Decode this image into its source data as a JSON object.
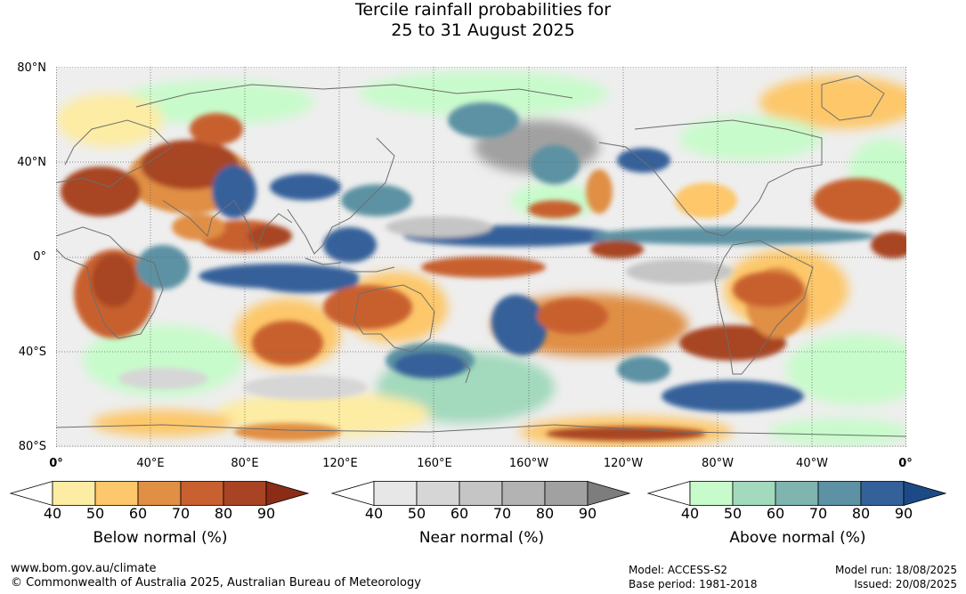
{
  "title": {
    "line1": "Tercile rainfall probabilities for",
    "line2": "25 to 31 August 2025"
  },
  "axes": {
    "lat_labels": [
      "80°N",
      "40°N",
      "0°",
      "40°S",
      "80°S"
    ],
    "lon_labels": [
      "0°",
      "40°E",
      "80°E",
      "120°E",
      "160°E",
      "160°W",
      "120°W",
      "80°W",
      "40°W",
      "0°"
    ]
  },
  "legends": [
    {
      "title": "Below normal (%)",
      "ticks": [
        "40",
        "50",
        "60",
        "70",
        "80",
        "90"
      ],
      "colors": [
        "#ffffff",
        "#fdeca3",
        "#fdc76b",
        "#e08f45",
        "#c8602f",
        "#a84424",
        "#8a2c16"
      ]
    },
    {
      "title": "Near normal (%)",
      "ticks": [
        "40",
        "50",
        "60",
        "70",
        "80",
        "90"
      ],
      "colors": [
        "#ffffff",
        "#e7e7e7",
        "#d6d6d6",
        "#c5c5c5",
        "#b3b3b3",
        "#a1a1a1",
        "#7d7d7d"
      ]
    },
    {
      "title": "Above normal (%)",
      "ticks": [
        "40",
        "50",
        "60",
        "70",
        "80",
        "90"
      ],
      "colors": [
        "#ffffff",
        "#c8fbcb",
        "#a3d9bd",
        "#7fb4af",
        "#5c92a3",
        "#34619a",
        "#1c4a86"
      ]
    }
  ],
  "footer": {
    "url": "www.bom.gov.au/climate",
    "copyright": "© Commonwealth of Australia 2025, Australian Bureau of Meteorology",
    "model": "Model: ACCESS-S2",
    "base_period": "Base period: 1981-2018",
    "model_run": "Model run: 18/08/2025",
    "issued": "Issued: 20/08/2025"
  },
  "colors": {
    "coastline": "#6e6e6e",
    "grid": "#666666",
    "dry_strong": "#a84424",
    "dry": "#e08f45",
    "dry_light": "#fdc76b",
    "wet_light": "#c8fbcb",
    "wet": "#7fb4af",
    "wet_strong": "#34619a",
    "near": "#d6d6d6"
  }
}
